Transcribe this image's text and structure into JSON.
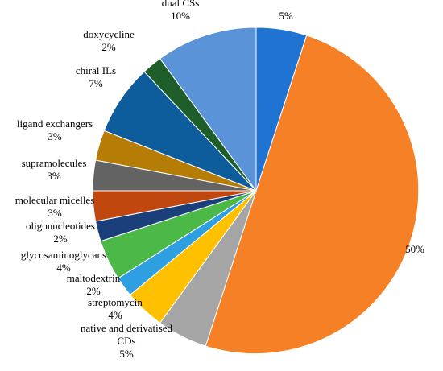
{
  "chart_data": {
    "type": "pie",
    "title": "",
    "start_angle_deg": 0,
    "direction": "clockwise",
    "slices": [
      {
        "name": "",
        "value": 5,
        "label": "5%",
        "color": "#1f73d2"
      },
      {
        "name": "",
        "value": 50,
        "label": "50%",
        "color": "#f58025"
      },
      {
        "name": "native and derivatised CDs",
        "value": 5,
        "label": "5%",
        "color": "#a5a5a5"
      },
      {
        "name": "streptomycin",
        "value": 4,
        "label": "4%",
        "color": "#ffc000"
      },
      {
        "name": "maltodextrin",
        "value": 2,
        "label": "2%",
        "color": "#2e9fe0"
      },
      {
        "name": "glycosaminoglycans",
        "value": 4,
        "label": "4%",
        "color": "#4cb848"
      },
      {
        "name": "oligonucleotides",
        "value": 2,
        "label": "2%",
        "color": "#1b3f7a"
      },
      {
        "name": "molecular micelles",
        "value": 3,
        "label": "3%",
        "color": "#c0470e"
      },
      {
        "name": "supramolecules",
        "value": 3,
        "label": "3%",
        "color": "#636363"
      },
      {
        "name": "ligand exchangers",
        "value": 3,
        "label": "3%",
        "color": "#b57d06"
      },
      {
        "name": "chiral ILs",
        "value": 7,
        "label": "7%",
        "color": "#0d5c9c"
      },
      {
        "name": "doxycycline",
        "value": 2,
        "label": "2%",
        "color": "#1e5e2a"
      },
      {
        "name": "dual CSs",
        "value": 10,
        "label": "10%",
        "color": "#5b93d8"
      }
    ],
    "legend": "none"
  }
}
